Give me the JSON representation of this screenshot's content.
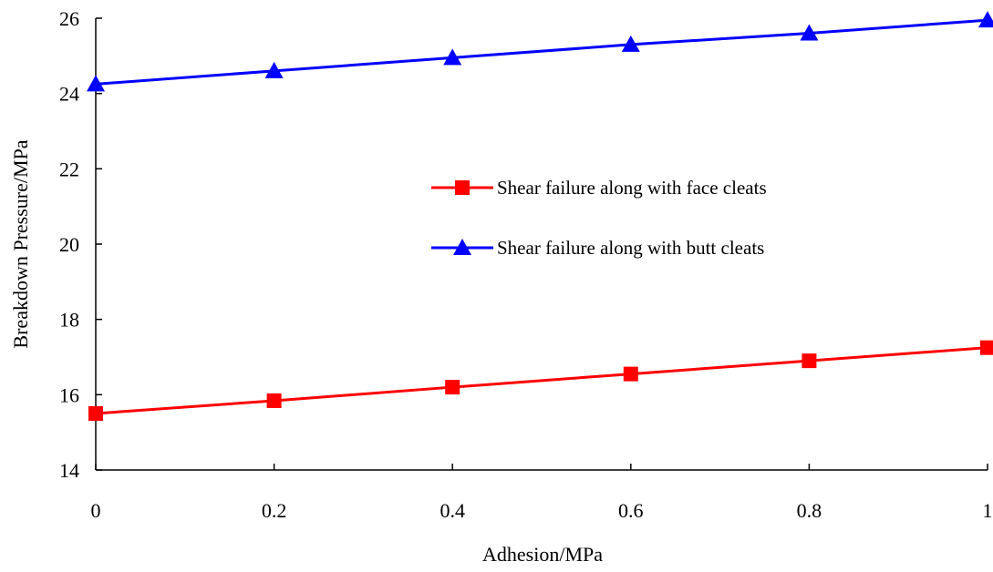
{
  "chart_data": {
    "type": "line",
    "title": "",
    "xlabel": "Adhesion/MPa",
    "ylabel": "Breakdown Pressure/MPa",
    "xlim": [
      0,
      1
    ],
    "ylim": [
      14,
      26
    ],
    "x": [
      0,
      0.2,
      0.4,
      0.6,
      0.8,
      1
    ],
    "x_tick_labels": [
      "0",
      "0.2",
      "0.4",
      "0.6",
      "0.8",
      "1"
    ],
    "y_ticks": [
      14,
      16,
      18,
      20,
      22,
      24,
      26
    ],
    "y_tick_labels": [
      "14",
      "16",
      "18",
      "20",
      "22",
      "24",
      "26"
    ],
    "grid": false,
    "legend_position": "center-right",
    "series": [
      {
        "name": "Shear failure along with face cleats",
        "color": "#ff0000",
        "marker": "square",
        "values": [
          15.5,
          15.84,
          16.2,
          16.55,
          16.9,
          17.25
        ]
      },
      {
        "name": "Shear failure along with butt cleats",
        "color": "#0000ff",
        "marker": "triangle",
        "values": [
          24.25,
          24.6,
          24.95,
          25.3,
          25.6,
          25.95
        ]
      }
    ]
  }
}
